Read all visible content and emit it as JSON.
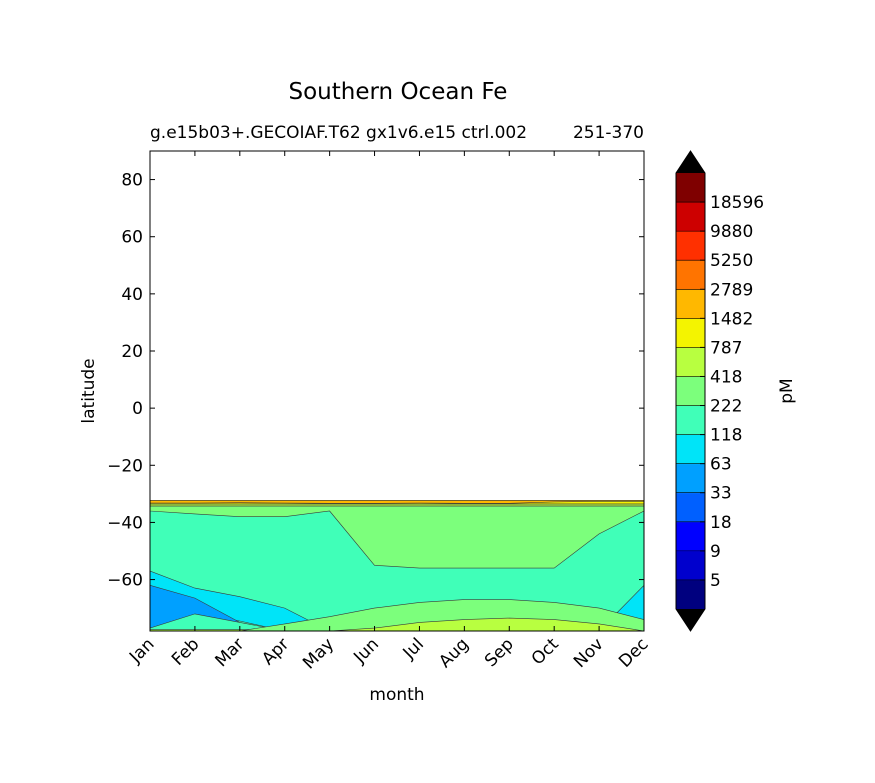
{
  "chart_data": {
    "type": "heatmap",
    "title": "Southern Ocean Fe",
    "subtitle": "g.e15b03+.GECOIAF.T62 gx1v6.e15 ctrl.002",
    "subtitle_right": "251-370",
    "xlabel": "month",
    "ylabel": "latitude",
    "x_ticks": [
      "Jan",
      "Feb",
      "Mar",
      "Apr",
      "May",
      "Jun",
      "Jul",
      "Aug",
      "Sep",
      "Oct",
      "Nov",
      "Dec"
    ],
    "y_ticks": [
      80,
      60,
      40,
      20,
      0,
      -20,
      -40,
      -60
    ],
    "y_tick_labels": [
      "80",
      "60",
      "40",
      "20",
      "0",
      "−20",
      "−40",
      "−60"
    ],
    "ylim": [
      -78,
      90
    ],
    "xlim": [
      0,
      11
    ],
    "colorbar": {
      "label": "pM",
      "tick_labels": [
        "5",
        "9",
        "18",
        "33",
        "63",
        "118",
        "222",
        "418",
        "787",
        "1482",
        "2789",
        "5250",
        "9880",
        "18596"
      ],
      "colors": [
        "#00007f",
        "#0000cd",
        "#0000ff",
        "#0060ff",
        "#00a0ff",
        "#00e4f8",
        "#40ffb8",
        "#7cff7c",
        "#b8ff40",
        "#f4f400",
        "#ffb800",
        "#ff7400",
        "#ff3000",
        "#cd0000",
        "#7f0000"
      ],
      "extend_under_color": "#000000",
      "extend_over_color": "#000000"
    },
    "fields": [
      {
        "level": 8,
        "color": "#b8ff40",
        "lower": [
          -78,
          -78,
          -78,
          -78,
          -78,
          -78,
          -78,
          -78,
          -78,
          -78,
          -78,
          -78
        ],
        "upper": [
          -33.5,
          -33.5,
          -33.5,
          -33.5,
          -33.5,
          -33.5,
          -33.5,
          -33.5,
          -33.5,
          -33.5,
          -33.5,
          -33.5
        ]
      },
      {
        "level": 9,
        "color": "#f4f400",
        "lower": [
          -33.5,
          -33.5,
          -33.5,
          -33.5,
          -33.5,
          -33.5,
          -33.5,
          -33.5,
          -33.5,
          -33.5,
          -33.5,
          -33.5
        ],
        "upper": [
          -32.3,
          -32.3,
          -32.3,
          -32.3,
          -32.3,
          -32.3,
          -32.3,
          -32.3,
          -32.3,
          -32.3,
          -32.3,
          -32.3
        ]
      },
      {
        "level": 10,
        "color": "#ffb800",
        "lower": [
          -33.2,
          -33.2,
          -33.1,
          -33.2,
          -33.3,
          -33.3,
          -33.2,
          -33.3,
          -33.3,
          -32.8,
          -32.6,
          -32.6
        ],
        "upper": [
          -32.3,
          -32.3,
          -32.3,
          -32.3,
          -32.3,
          -32.3,
          -32.3,
          -32.3,
          -32.3,
          -32.3,
          -32.3,
          -32.3
        ]
      },
      {
        "level": 6,
        "color": "#40ffb8",
        "lower": [
          -77.5,
          -77.5,
          -77.5,
          -77.5,
          -77.5,
          -77.5,
          -77.5,
          -77.5,
          -77.5,
          -77.5,
          -77.5,
          -77.5
        ],
        "upper": [
          -34.3,
          -34.3,
          -34.3,
          -34.3,
          -34.3,
          -34.3,
          -34.3,
          -34.3,
          -34.3,
          -34.3,
          -34.3,
          -34.3
        ]
      },
      {
        "level": 7,
        "color": "#7cff7c",
        "lower": [
          -36,
          -37,
          -38,
          -38,
          -36,
          -55,
          -56,
          -56,
          -56,
          -56,
          -44,
          -36
        ],
        "upper": [
          -34.3,
          -34.3,
          -34.3,
          -34.3,
          -34.3,
          -34.3,
          -34.3,
          -34.3,
          -34.3,
          -34.3,
          -34.3,
          -34.3
        ]
      },
      {
        "level": 5,
        "color": "#00e4f8",
        "lower": [
          -74,
          -71.5,
          -74.5,
          -78,
          -78,
          -78,
          -78,
          -78,
          -78,
          -78,
          -78,
          -78
        ],
        "upper": [
          -57,
          -63,
          -66,
          -70,
          -78,
          -78,
          -78,
          -78,
          -78,
          -78,
          -78,
          -62
        ]
      },
      {
        "level": 4,
        "color": "#00a0ff",
        "lower": [
          -77,
          -72,
          -75,
          -78,
          -78,
          -78,
          -78,
          -78,
          -78,
          -78,
          -78,
          -78
        ],
        "upper": [
          -62,
          -66.5,
          -75,
          -78,
          -78,
          -78,
          -78,
          -78,
          -78,
          -78,
          -78,
          -78
        ]
      },
      {
        "level": 7,
        "color": "#7cff7c",
        "lower": [
          -78,
          -78,
          -78,
          -78,
          -78,
          -78,
          -78,
          -78,
          -78,
          -78,
          -78,
          -78
        ],
        "upper": [
          -78,
          -78,
          -78,
          -75.5,
          -73,
          -70,
          -68,
          -67,
          -67,
          -68,
          -70,
          -74
        ]
      },
      {
        "level": 8,
        "color": "#b8ff40",
        "lower": [
          -78,
          -78,
          -78,
          -78,
          -78,
          -78,
          -78,
          -78,
          -78,
          -78,
          -78,
          -78
        ],
        "upper": [
          -78,
          -78,
          -78,
          -78,
          -78,
          -77,
          -75,
          -74,
          -73.5,
          -74,
          -75.5,
          -78
        ]
      }
    ]
  }
}
